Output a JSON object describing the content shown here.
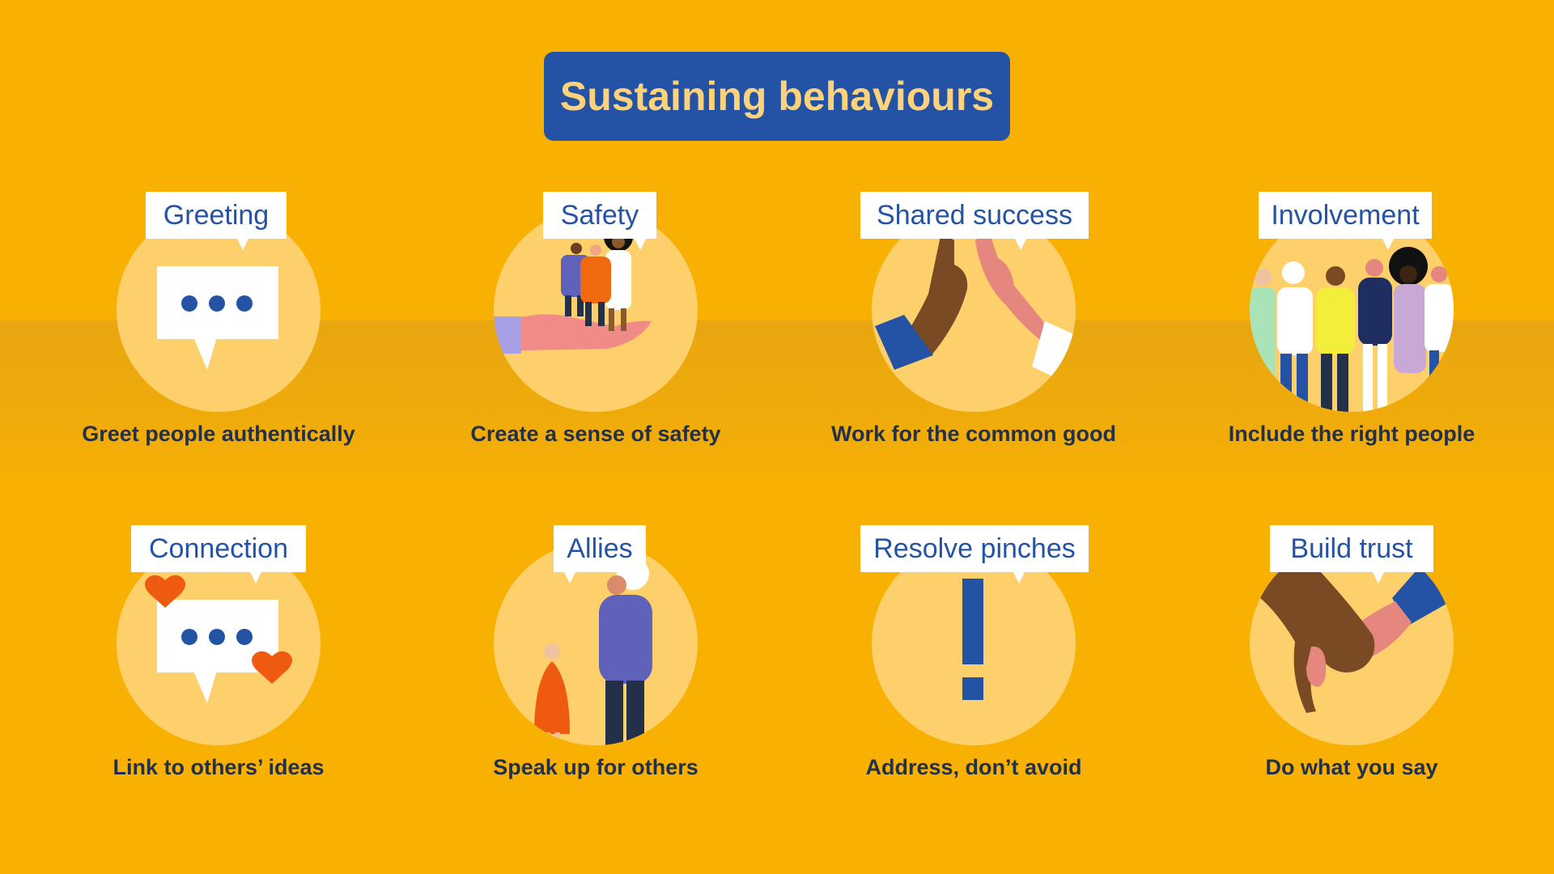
{
  "title": "Sustaining behaviours",
  "colors": {
    "background": "#F8B003",
    "title_box": "#2453A6",
    "title_text": "#FCD27A",
    "circle": "#FDD06B",
    "label_text": "#2453A6",
    "caption_text": "#22304A"
  },
  "cards": [
    {
      "label": "Greeting",
      "caption": "Greet people authentically",
      "icon": "speech-bubble-icon"
    },
    {
      "label": "Safety",
      "caption": "Create a sense of safety",
      "icon": "people-in-hand-icon"
    },
    {
      "label": "Shared success",
      "caption": "Work for the common good",
      "icon": "high-five-icon"
    },
    {
      "label": "Involvement",
      "caption": "Include the right people",
      "icon": "group-of-people-icon"
    },
    {
      "label": "Connection",
      "caption": "Link to others’ ideas",
      "icon": "speech-bubble-hearts-icon"
    },
    {
      "label": "Allies",
      "caption": "Speak up for others",
      "icon": "two-people-icon"
    },
    {
      "label": "Resolve pinches",
      "caption": "Address, don’t avoid",
      "icon": "exclamation-icon"
    },
    {
      "label": "Build trust",
      "caption": "Do what you say",
      "icon": "holding-hands-icon"
    }
  ]
}
